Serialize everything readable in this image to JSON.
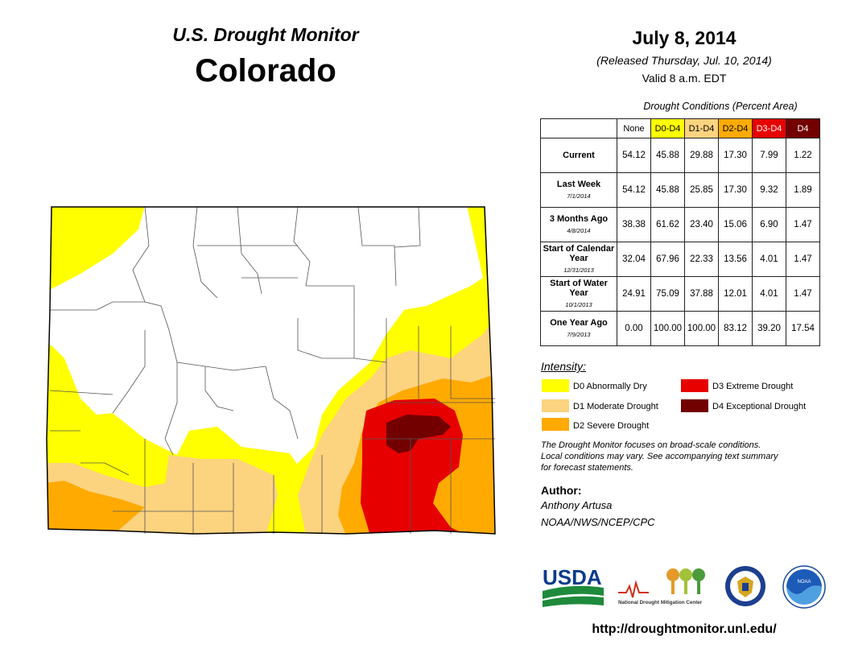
{
  "header": {
    "subtitle": "U.S. Drought Monitor",
    "state": "Colorado",
    "date": "July 8, 2014",
    "released": "(Released Thursday, Jul. 10, 2014)",
    "valid": "Valid 8 a.m. EDT"
  },
  "table": {
    "caption": "Drought Conditions (Percent Area)",
    "columns": [
      {
        "label": "None",
        "color": "#ffffff",
        "text_color": "#000000"
      },
      {
        "label": "D0-D4",
        "color": "#ffff00",
        "text_color": "#000000"
      },
      {
        "label": "D1-D4",
        "color": "#fcd37f",
        "text_color": "#000000"
      },
      {
        "label": "D2-D4",
        "color": "#ffaa00",
        "text_color": "#000000"
      },
      {
        "label": "D3-D4",
        "color": "#e60000",
        "text_color": "#ffffff"
      },
      {
        "label": "D4",
        "color": "#730000",
        "text_color": "#ffffff"
      }
    ],
    "rows": [
      {
        "label": "Current",
        "date": "",
        "values": [
          "54.12",
          "45.88",
          "29.88",
          "17.30",
          "7.99",
          "1.22"
        ]
      },
      {
        "label": "Last Week",
        "date": "7/1/2014",
        "values": [
          "54.12",
          "45.88",
          "25.85",
          "17.30",
          "9.32",
          "1.89"
        ]
      },
      {
        "label": "3 Months Ago",
        "date": "4/8/2014",
        "values": [
          "38.38",
          "61.62",
          "23.40",
          "15.06",
          "6.90",
          "1.47"
        ]
      },
      {
        "label": "Start of Calendar Year",
        "date": "12/31/2013",
        "values": [
          "32.04",
          "67.96",
          "22.33",
          "13.56",
          "4.01",
          "1.47"
        ]
      },
      {
        "label": "Start of Water Year",
        "date": "10/1/2013",
        "values": [
          "24.91",
          "75.09",
          "37.88",
          "12.01",
          "4.01",
          "1.47"
        ]
      },
      {
        "label": "One Year Ago",
        "date": "7/9/2013",
        "values": [
          "0.00",
          "100.00",
          "100.00",
          "83.12",
          "39.20",
          "17.54"
        ]
      }
    ]
  },
  "legend": {
    "title": "Intensity:",
    "items": [
      {
        "label": "D0 Abnormally Dry",
        "color": "#ffff00"
      },
      {
        "label": "D1 Moderate Drought",
        "color": "#fcd37f"
      },
      {
        "label": "D2 Severe Drought",
        "color": "#ffaa00"
      },
      {
        "label": "D3 Extreme Drought",
        "color": "#e60000"
      },
      {
        "label": "D4 Exceptional Drought",
        "color": "#730000"
      }
    ]
  },
  "disclaimer": [
    "The Drought Monitor focuses on broad-scale conditions.",
    "Local conditions may vary. See accompanying text summary",
    "for forecast statements."
  ],
  "author": {
    "heading": "Author:",
    "name": "Anthony Artusa",
    "org": "NOAA/NWS/NCEP/CPC"
  },
  "logos": {
    "usda": "USDA",
    "ndmc": "National Drought Mitigation Center",
    "noaa": "NOAA"
  },
  "url": "http://droughtmonitor.unl.edu/",
  "map_colors": {
    "none": "#ffffff",
    "d0": "#ffff00",
    "d1": "#fcd37f",
    "d2": "#ffaa00",
    "d3": "#e60000",
    "d4": "#730000",
    "county_border": "#555555",
    "state_border": "#000000"
  }
}
